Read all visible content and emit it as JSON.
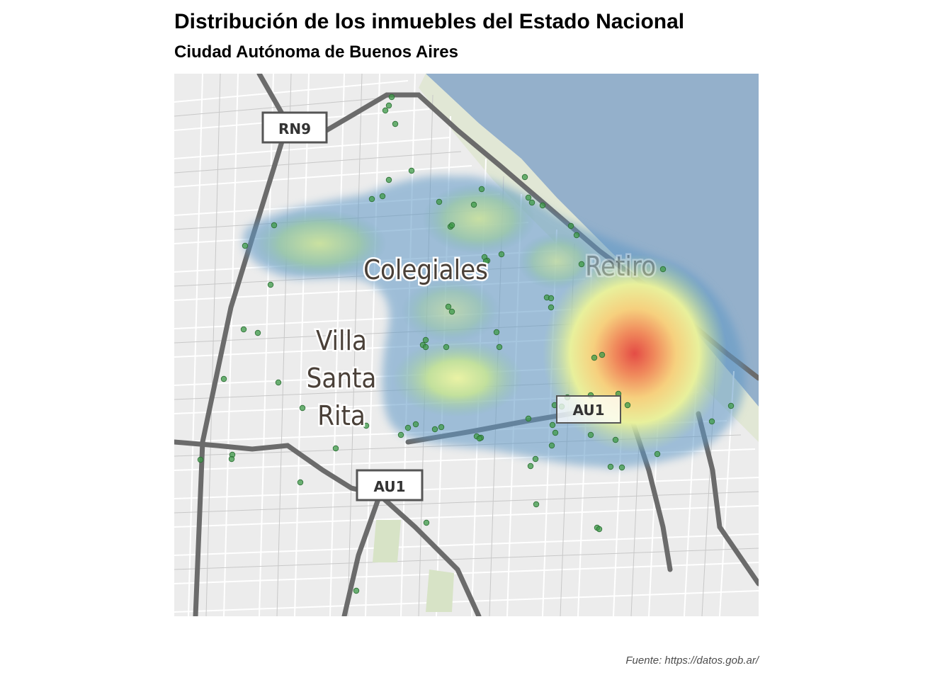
{
  "header": {
    "title": "Distribución de los inmuebles del Estado Nacional",
    "subtitle": "Ciudad Autónoma de Buenos Aires"
  },
  "caption": "Fuente: https://datos.gob.ar/",
  "map": {
    "labels": {
      "colegiales": "Colegiales",
      "retiro": "Retiro",
      "villa": "Villa",
      "santa": "Santa",
      "rita": "Rita"
    },
    "shields": {
      "rn9": "RN9",
      "au1_center": "AU1",
      "au1_south": "AU1"
    },
    "colors": {
      "water": "#94b0cb",
      "land": "#ececec",
      "road_major": "#6b6b6b",
      "point": "#3d9a48",
      "heat_low": "#5f98c6",
      "heat_mid": "#e6ee9a",
      "heat_high": "#e44c45"
    }
  }
}
